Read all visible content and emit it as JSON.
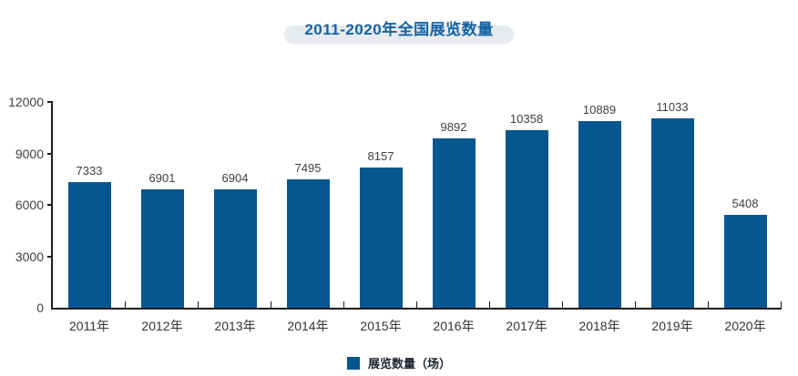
{
  "header": {
    "title": "2011-2020年全国展览数量"
  },
  "legend": {
    "label": "展览数量（场）"
  },
  "colors": {
    "bar": "#065690",
    "title_text": "#1463a5",
    "title_pill": "#e7eaee",
    "axis_line": "#1c1c1c",
    "value_label": "#404040"
  },
  "chart_data": {
    "type": "bar",
    "title": "2011-2020年全国展览数量",
    "categories": [
      "2011年",
      "2012年",
      "2013年",
      "2014年",
      "2015年",
      "2016年",
      "2017年",
      "2018年",
      "2019年",
      "2020年"
    ],
    "series": [
      {
        "name": "展览数量（场）",
        "values": [
          7333,
          6901,
          6904,
          7495,
          8157,
          9892,
          10358,
          10889,
          11033,
          5408
        ]
      }
    ],
    "value_labels_shown": true,
    "xlabel": "",
    "ylabel": "",
    "ylim": [
      0,
      12000
    ],
    "yticks": [
      0,
      3000,
      6000,
      9000,
      12000
    ],
    "grid": false,
    "legend_position": "bottom"
  }
}
